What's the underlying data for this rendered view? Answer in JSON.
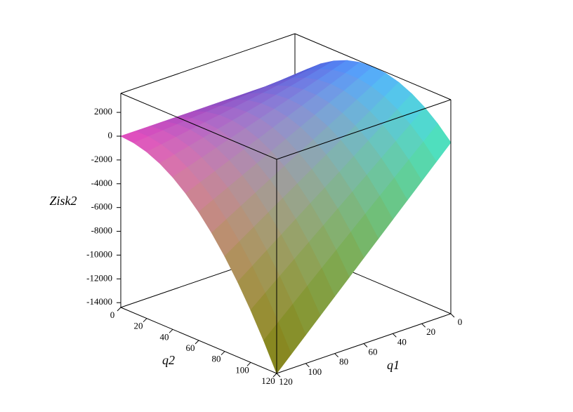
{
  "chart_data": {
    "type": "surface",
    "xlabel": "q1",
    "ylabel": "q2",
    "zlabel": "Zisk2",
    "x": [
      0,
      10,
      20,
      30,
      40,
      50,
      60,
      70,
      80,
      90,
      100,
      110,
      120
    ],
    "y": [
      0,
      10,
      20,
      30,
      40,
      50,
      60,
      70,
      80,
      90,
      100,
      110,
      120
    ],
    "z": [
      [
        0,
        1100,
        2000,
        2700,
        3200,
        3500,
        3600,
        3500,
        3200,
        2700,
        2000,
        1100,
        0
      ],
      [
        0,
        1000,
        1800,
        2400,
        2800,
        3000,
        3000,
        2800,
        2400,
        1800,
        1000,
        0,
        -1200
      ],
      [
        0,
        900,
        1600,
        2100,
        2400,
        2500,
        2400,
        2100,
        1600,
        900,
        0,
        -1100,
        -2400
      ],
      [
        0,
        800,
        1400,
        1800,
        2000,
        2000,
        1800,
        1400,
        800,
        0,
        -1000,
        -2200,
        -3600
      ],
      [
        0,
        700,
        1200,
        1500,
        1600,
        1500,
        1200,
        700,
        0,
        -900,
        -2000,
        -3300,
        -4800
      ],
      [
        0,
        600,
        1000,
        1200,
        1200,
        1000,
        600,
        0,
        -800,
        -1800,
        -3000,
        -4400,
        -6000
      ],
      [
        0,
        500,
        800,
        900,
        800,
        500,
        0,
        -700,
        -1600,
        -2700,
        -4000,
        -5500,
        -7200
      ],
      [
        0,
        400,
        600,
        600,
        400,
        0,
        -600,
        -1400,
        -2400,
        -3600,
        -5000,
        -6600,
        -8400
      ],
      [
        0,
        300,
        400,
        300,
        0,
        -500,
        -1200,
        -2100,
        -3200,
        -4500,
        -6000,
        -7700,
        -9600
      ],
      [
        0,
        200,
        200,
        0,
        -400,
        -1000,
        -1800,
        -2800,
        -4000,
        -5400,
        -7000,
        -8800,
        -10800
      ],
      [
        0,
        100,
        0,
        -300,
        -800,
        -1500,
        -2400,
        -3500,
        -4800,
        -6300,
        -8000,
        -9900,
        -12000
      ],
      [
        0,
        0,
        -200,
        -600,
        -1200,
        -2000,
        -3000,
        -4200,
        -5600,
        -7200,
        -9000,
        -11000,
        -13200
      ],
      [
        0,
        -100,
        -400,
        -900,
        -1600,
        -2500,
        -3600,
        -4900,
        -6400,
        -8100,
        -10000,
        -12100,
        -14400
      ]
    ],
    "xlim": [
      0,
      120
    ],
    "ylim": [
      0,
      120
    ],
    "zlim": [
      -14400,
      3600
    ],
    "xticks": [
      0,
      20,
      40,
      60,
      80,
      100,
      120
    ],
    "yticks": [
      0,
      20,
      40,
      60,
      80,
      100,
      120
    ],
    "zticks": [
      2000,
      0,
      -2000,
      -4000,
      -6000,
      -8000,
      -10000,
      -12000,
      -14000
    ]
  }
}
